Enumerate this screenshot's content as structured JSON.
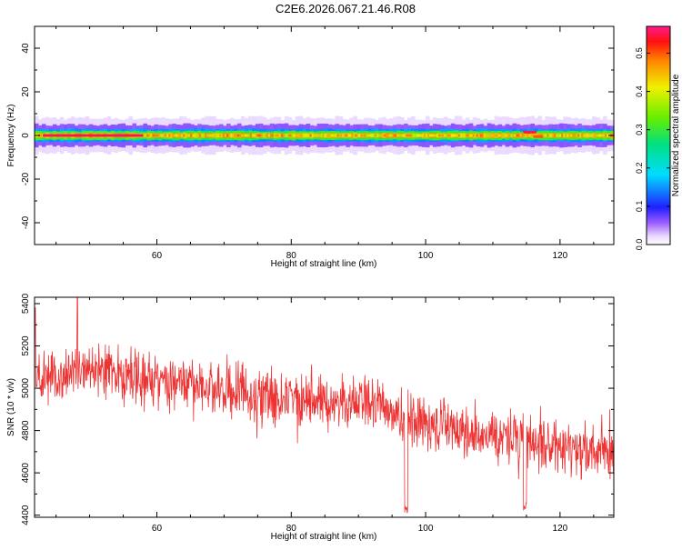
{
  "title": "C2E6.2026.067.21.46.R08",
  "chart_data": [
    {
      "type": "heatmap",
      "xlabel": "Height of straight line (km)",
      "ylabel": "Frequency (Hz)",
      "xlim": [
        41.8,
        128
      ],
      "ylim": [
        -50,
        50
      ],
      "xticks": [
        60,
        80,
        100,
        120
      ],
      "yticks": [
        -40,
        -20,
        0,
        20,
        40
      ],
      "band_center_hz": 0,
      "band_halfwidth_hz": [
        1,
        2,
        3,
        5,
        8
      ],
      "band_levels": [
        0.45,
        0.3,
        0.15,
        0.06,
        0.02
      ],
      "peak_regions": [
        {
          "x": [
            43,
            58
          ],
          "y": 0,
          "value": 0.55
        },
        {
          "x": [
            114.5,
            116.5
          ],
          "y": 1.5,
          "value": 0.55
        },
        {
          "x": [
            116,
            117.5
          ],
          "y": -0.5,
          "value": 0.5
        },
        {
          "x": [
            97,
            98
          ],
          "y": 0,
          "value": 0.48
        }
      ],
      "colorbar": {
        "label": "Normalized spectral amplitude",
        "range": [
          0,
          0.57
        ],
        "ticks": [
          0.0,
          0.1,
          0.2,
          0.3,
          0.4,
          0.5
        ]
      },
      "grid": false
    },
    {
      "type": "line",
      "xlabel": "Height of straight line (km)",
      "ylabel": "SNR (10 * v/v)",
      "xlim": [
        41.8,
        128
      ],
      "ylim": [
        4390,
        5430
      ],
      "xticks": [
        60,
        80,
        100,
        120
      ],
      "yticks": [
        4400,
        4600,
        4800,
        5000,
        5200,
        5400
      ],
      "color": "#ee3333",
      "trend": [
        {
          "x": 41.8,
          "y": 5040
        },
        {
          "x": 50,
          "y": 5080
        },
        {
          "x": 60,
          "y": 5040
        },
        {
          "x": 70,
          "y": 4990
        },
        {
          "x": 80,
          "y": 4950
        },
        {
          "x": 90,
          "y": 4930
        },
        {
          "x": 100,
          "y": 4840
        },
        {
          "x": 110,
          "y": 4780
        },
        {
          "x": 120,
          "y": 4730
        },
        {
          "x": 128,
          "y": 4690
        }
      ],
      "noise_amplitude": 130,
      "dips": [
        {
          "x": 97.1,
          "y": 4410
        },
        {
          "x": 114.8,
          "y": 4420
        }
      ],
      "spikes": [
        {
          "x": 48.2,
          "y": 5430
        },
        {
          "x": 41.9,
          "y": 5380
        }
      ],
      "grid": false
    }
  ]
}
